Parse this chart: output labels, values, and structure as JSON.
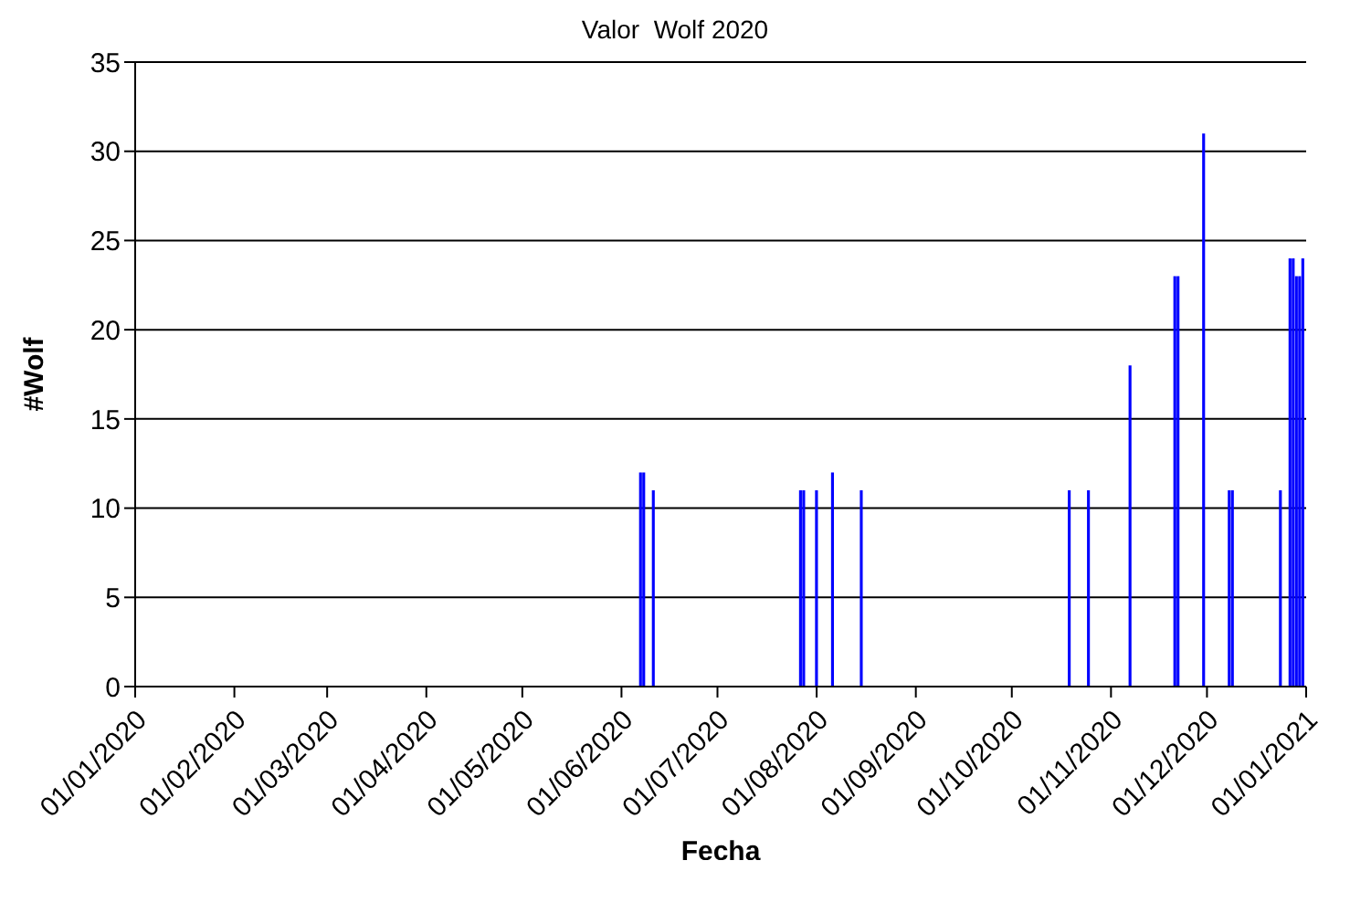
{
  "chart_data": {
    "type": "bar",
    "title": "Valor  Wolf 2020",
    "xlabel": "Fecha",
    "ylabel": "#Wolf",
    "x": [
      "2020-06-07",
      "2020-06-08",
      "2020-06-11",
      "2020-07-27",
      "2020-07-28",
      "2020-08-01",
      "2020-08-06",
      "2020-08-15",
      "2020-10-19",
      "2020-10-25",
      "2020-11-07",
      "2020-11-21",
      "2020-11-22",
      "2020-11-30",
      "2020-12-08",
      "2020-12-09",
      "2020-12-24",
      "2020-12-27",
      "2020-12-28",
      "2020-12-29",
      "2020-12-30",
      "2020-12-31"
    ],
    "series": [
      {
        "color": "#0000ff",
        "values": [
          12,
          12,
          11,
          11,
          11,
          11,
          12,
          11,
          11,
          11,
          18,
          23,
          23,
          31,
          11,
          11,
          11,
          24,
          24,
          23,
          23,
          24
        ]
      }
    ],
    "xlim": [
      "2020-01-01",
      "2021-01-01"
    ],
    "xticks": [
      {
        "value": "2020-01-01",
        "label": "01/01/2020"
      },
      {
        "value": "2020-02-01",
        "label": "01/02/2020"
      },
      {
        "value": "2020-03-01",
        "label": "01/03/2020"
      },
      {
        "value": "2020-04-01",
        "label": "01/04/2020"
      },
      {
        "value": "2020-05-01",
        "label": "01/05/2020"
      },
      {
        "value": "2020-06-01",
        "label": "01/06/2020"
      },
      {
        "value": "2020-07-01",
        "label": "01/07/2020"
      },
      {
        "value": "2020-08-01",
        "label": "01/08/2020"
      },
      {
        "value": "2020-09-01",
        "label": "01/09/2020"
      },
      {
        "value": "2020-10-01",
        "label": "01/10/2020"
      },
      {
        "value": "2020-11-01",
        "label": "01/11/2020"
      },
      {
        "value": "2020-12-01",
        "label": "01/12/2020"
      },
      {
        "value": "2021-01-01",
        "label": "01/01/2021"
      }
    ],
    "ylim": [
      0,
      35
    ],
    "yticks": [
      0,
      5,
      10,
      15,
      20,
      25,
      30,
      35
    ],
    "grid": "y",
    "legend": false
  }
}
